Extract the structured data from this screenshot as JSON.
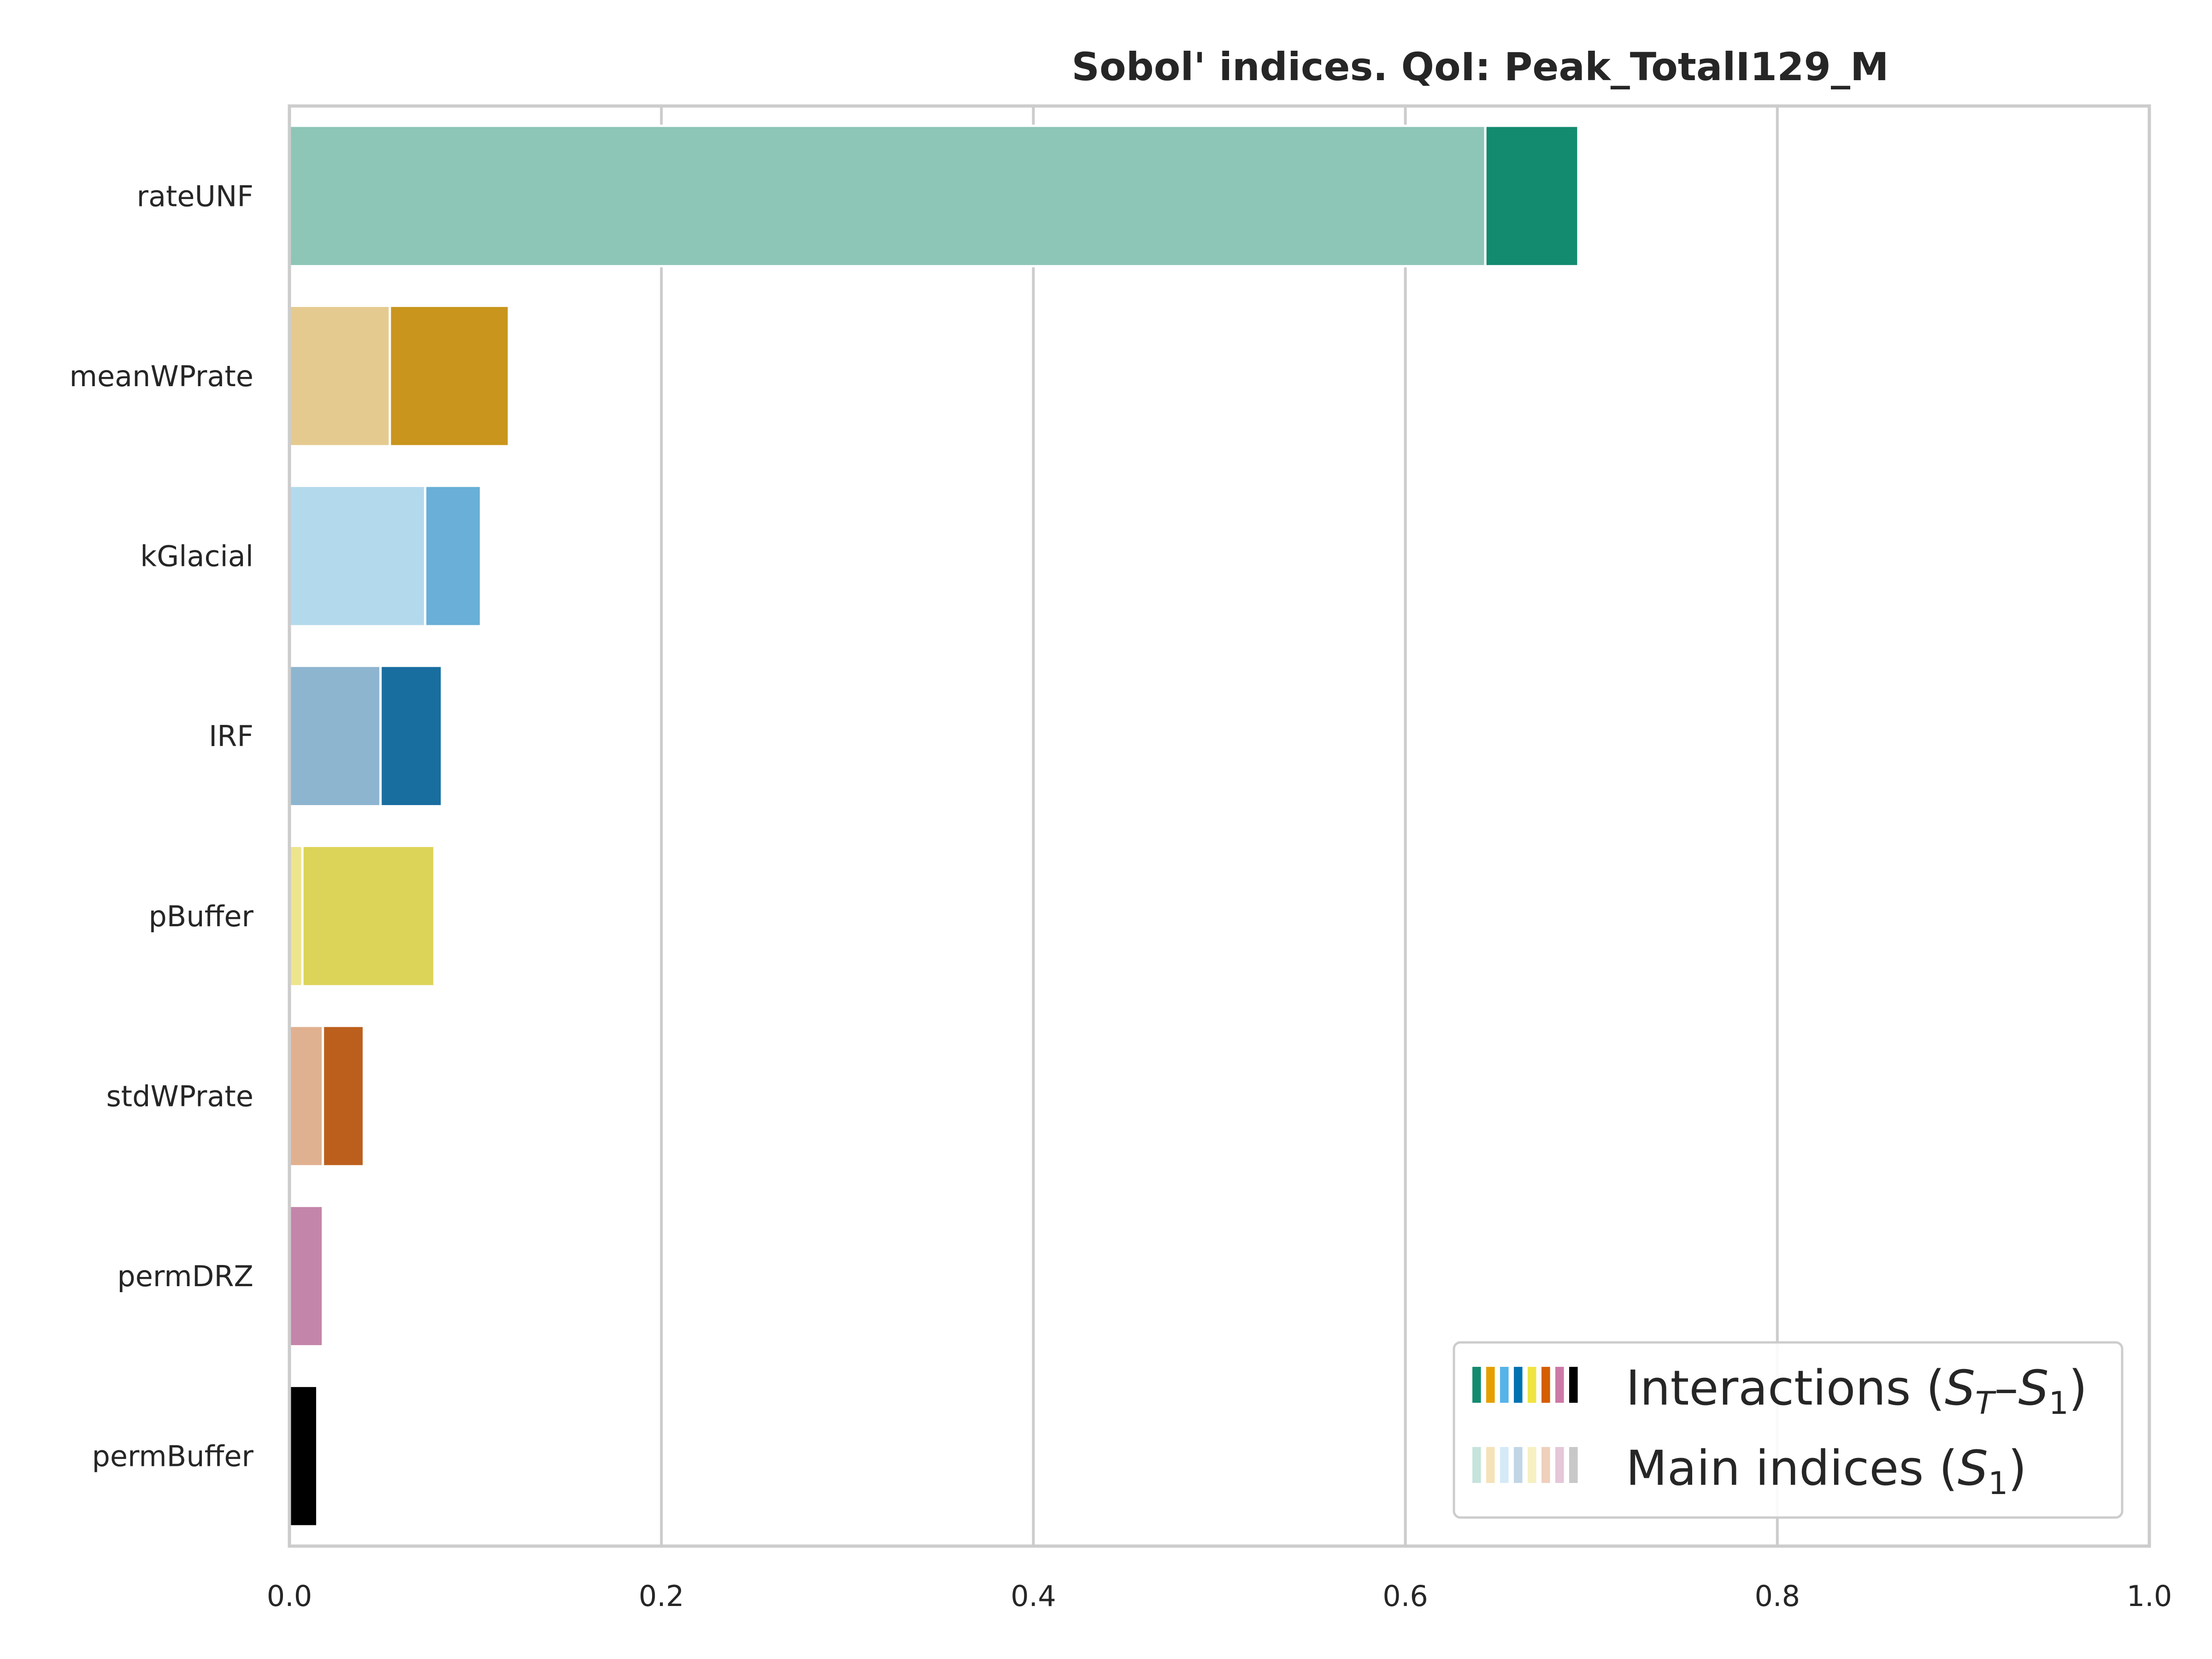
{
  "chart_data": {
    "type": "bar",
    "orientation": "horizontal",
    "stacked": true,
    "title": "Sobol' indices. QoI: Peak_TotalI129_M",
    "xlabel": "",
    "ylabel": "",
    "xlim": [
      0,
      1
    ],
    "xticks": [
      "0.0",
      "0.2",
      "0.4",
      "0.6",
      "0.8",
      "1.0"
    ],
    "grid": true,
    "legend_position": "lower-right",
    "categories": [
      "rateUNF",
      "meanWPrate",
      "kGlacial",
      "IRF",
      "pBuffer",
      "stdWPrate",
      "permDRZ",
      "permBuffer"
    ],
    "series": [
      {
        "name": "Main indices (S1)",
        "values": [
          0.643,
          0.054,
          0.073,
          0.049,
          0.007,
          0.018,
          0.018,
          0.0
        ],
        "colors": [
          "#8dc5b6",
          "#e5ca90",
          "#b3d9ec",
          "#8eb5cf",
          "#ede48e",
          "#e0b190",
          "#c485aa",
          "#000000"
        ]
      },
      {
        "name": "Interactions (ST−S1)",
        "values": [
          0.05,
          0.064,
          0.03,
          0.033,
          0.071,
          0.022,
          0.0,
          0.015
        ],
        "colors": [
          "#138b6f",
          "#c9951c",
          "#69afd7",
          "#196ea0",
          "#dcd458",
          "#bc5f1d",
          "#c485aa",
          "#000000"
        ]
      }
    ],
    "legend": {
      "interactions_label": "Interactions",
      "main_label": "Main indices",
      "interactions_math": {
        "open": "(",
        "S1": "S",
        "sub1": "T",
        "dash": "–",
        "S2": "S",
        "sub2": "1",
        "close": ")"
      },
      "main_math": {
        "open": "(",
        "S": "S",
        "sub": "1",
        "close": ")"
      },
      "interaction_swatch_colors": [
        "#138b6f",
        "#e69f00",
        "#56b4e9",
        "#0072b2",
        "#f0e442",
        "#d55e00",
        "#cc79a7",
        "#000000"
      ],
      "main_swatch_colors": [
        "#c6e3dc",
        "#f5e2b8",
        "#d4eaf6",
        "#c0d6e6",
        "#f6f0c2",
        "#eed0bc",
        "#e4c7d8",
        "#c8c8c8"
      ]
    }
  }
}
